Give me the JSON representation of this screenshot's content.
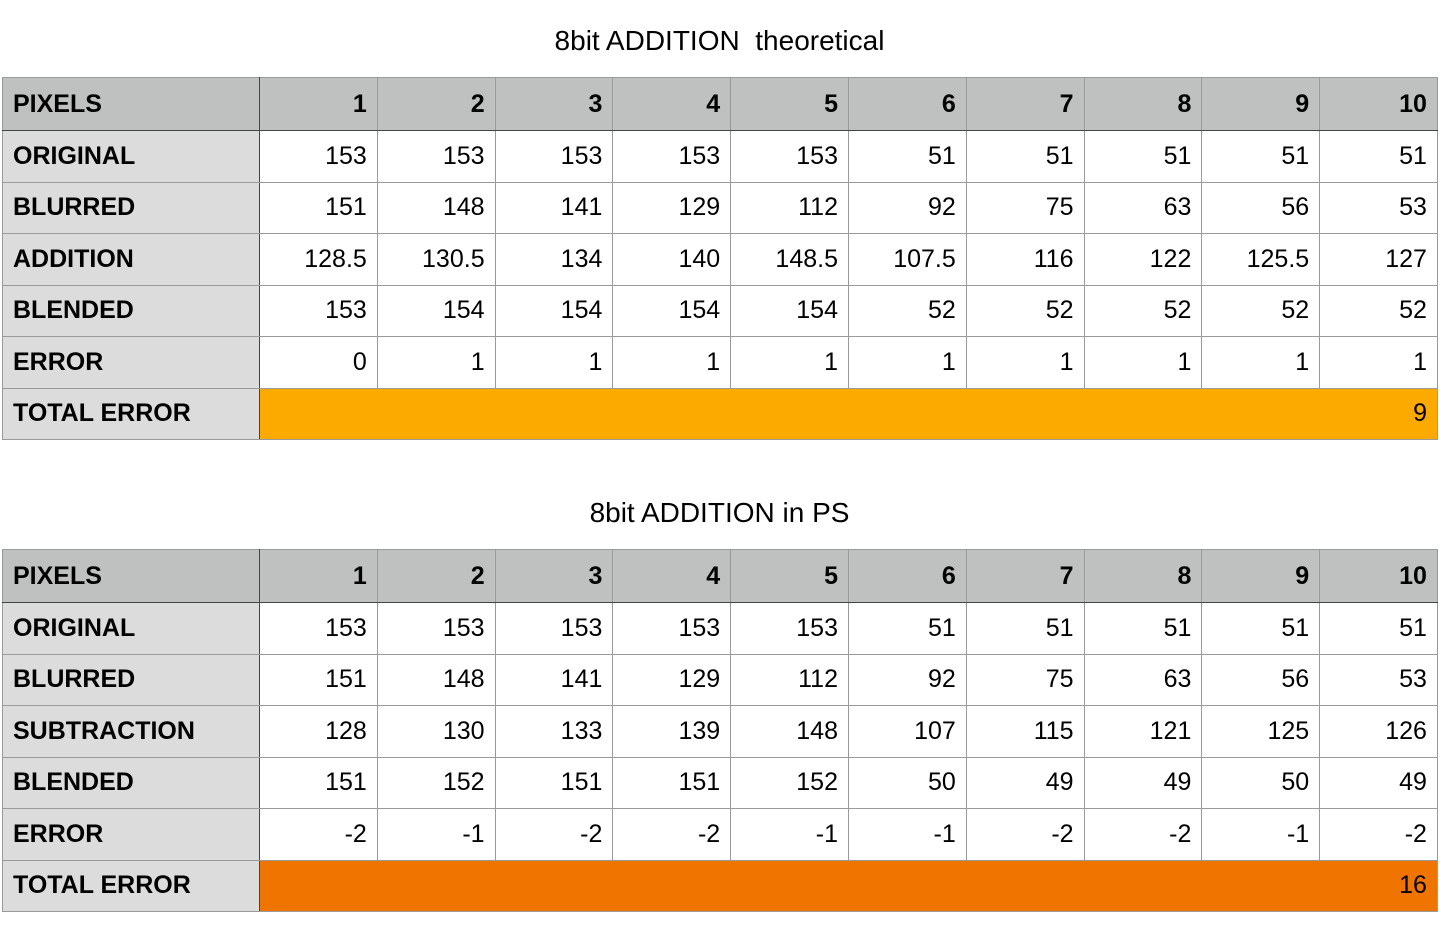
{
  "tables": [
    {
      "title": "8bit ADDITION  theoretical",
      "header_label": "PIXELS",
      "columns": [
        "1",
        "2",
        "3",
        "4",
        "5",
        "6",
        "7",
        "8",
        "9",
        "10"
      ],
      "rows": [
        {
          "label": "ORIGINAL",
          "values": [
            "153",
            "153",
            "153",
            "153",
            "153",
            "51",
            "51",
            "51",
            "51",
            "51"
          ]
        },
        {
          "label": "BLURRED",
          "values": [
            "151",
            "148",
            "141",
            "129",
            "112",
            "92",
            "75",
            "63",
            "56",
            "53"
          ]
        },
        {
          "label": "ADDITION",
          "values": [
            "128.5",
            "130.5",
            "134",
            "140",
            "148.5",
            "107.5",
            "116",
            "122",
            "125.5",
            "127"
          ]
        },
        {
          "label": "BLENDED",
          "values": [
            "153",
            "154",
            "154",
            "154",
            "154",
            "52",
            "52",
            "52",
            "52",
            "52"
          ]
        },
        {
          "label": "ERROR",
          "values": [
            "0",
            "1",
            "1",
            "1",
            "1",
            "1",
            "1",
            "1",
            "1",
            "1"
          ]
        }
      ],
      "total": {
        "label": "TOTAL ERROR",
        "value": "9",
        "color": "#fcaa00"
      }
    },
    {
      "title": "8bit ADDITION in PS",
      "header_label": "PIXELS",
      "columns": [
        "1",
        "2",
        "3",
        "4",
        "5",
        "6",
        "7",
        "8",
        "9",
        "10"
      ],
      "rows": [
        {
          "label": "ORIGINAL",
          "values": [
            "153",
            "153",
            "153",
            "153",
            "153",
            "51",
            "51",
            "51",
            "51",
            "51"
          ]
        },
        {
          "label": "BLURRED",
          "values": [
            "151",
            "148",
            "141",
            "129",
            "112",
            "92",
            "75",
            "63",
            "56",
            "53"
          ]
        },
        {
          "label": "SUBTRACTION",
          "values": [
            "128",
            "130",
            "133",
            "139",
            "148",
            "107",
            "115",
            "121",
            "125",
            "126"
          ]
        },
        {
          "label": "BLENDED",
          "values": [
            "151",
            "152",
            "151",
            "151",
            "152",
            "50",
            "49",
            "49",
            "50",
            "49"
          ]
        },
        {
          "label": "ERROR",
          "values": [
            "-2",
            "-1",
            "-2",
            "-2",
            "-1",
            "-1",
            "-2",
            "-2",
            "-1",
            "-2"
          ]
        }
      ],
      "total": {
        "label": "TOTAL ERROR",
        "value": "16",
        "color": "#f07400"
      }
    }
  ]
}
